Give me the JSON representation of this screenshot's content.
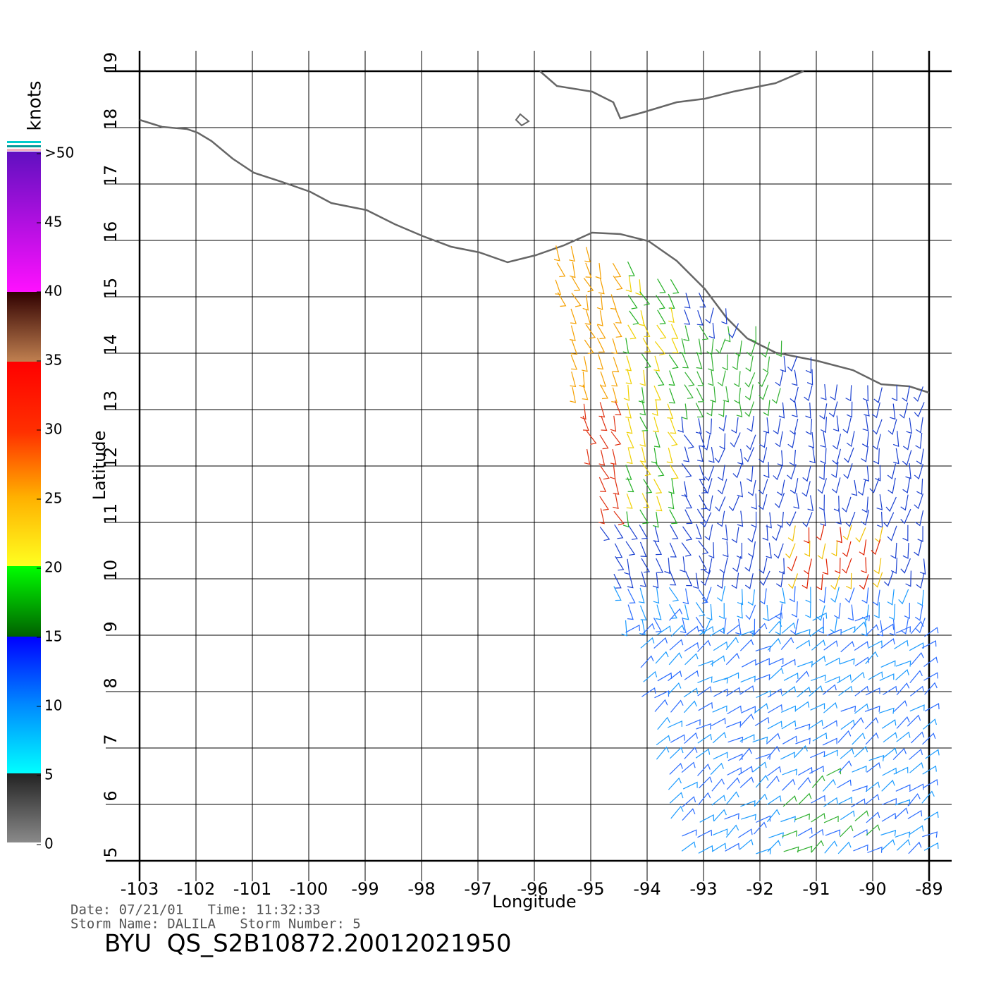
{
  "map": {
    "xlabel": "Longitude",
    "ylabel": "Latitude",
    "xlim": [
      -103,
      -89
    ],
    "ylim": [
      5,
      19
    ],
    "xticks": [
      -103,
      -102,
      -101,
      -100,
      -99,
      -98,
      -97,
      -96,
      -95,
      -94,
      -93,
      -92,
      -91,
      -90,
      -89
    ],
    "yticks": [
      5,
      6,
      7,
      8,
      9,
      10,
      11,
      12,
      13,
      14,
      15,
      16,
      17,
      18,
      19
    ]
  },
  "colorbar": {
    "title": "knots",
    "ticks": [
      0,
      5,
      10,
      15,
      20,
      25,
      30,
      35,
      40,
      45,
      {
        "value": 50,
        "label": ">50"
      }
    ]
  },
  "footer": {
    "line1": "Date: 07/21/01   Time: 11:32:33",
    "line2": "Storm Name: DALILA   Storm Number: 5",
    "file": "BYU  QS_S2B10872.20012021950"
  }
}
